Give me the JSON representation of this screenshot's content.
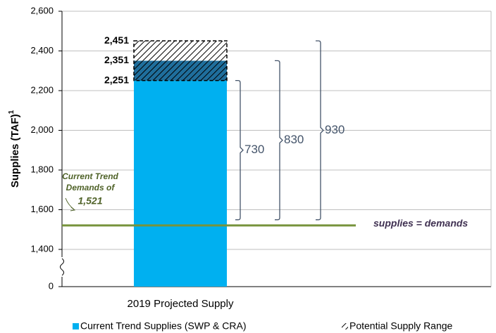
{
  "chart_data": {
    "type": "bar",
    "y_label": "Supplies (TAF)",
    "y_label_sup": "1",
    "categories": [
      "2019 Projected Supply"
    ],
    "series": [
      {
        "name": "Current Trend Supplies (SWP & CRA)",
        "color": "#00b0f0",
        "values": [
          2251
        ]
      },
      {
        "name": "Potential Supply Range",
        "values": [
          200
        ],
        "pattern": "hatch",
        "segments": [
          100,
          100
        ],
        "segment_colors": [
          "#1f6e9c",
          "#ffffff"
        ]
      }
    ],
    "levels": [
      {
        "value": 2451,
        "label": "2,451"
      },
      {
        "value": 2351,
        "label": "2,351"
      },
      {
        "value": 2251,
        "label": "2,251"
      }
    ],
    "demand": {
      "value": 1521,
      "label": "1,521",
      "text": [
        "Current Trend",
        "Demands of"
      ],
      "line_label": "supplies = demands",
      "color": "#77933c"
    },
    "brackets": [
      730,
      830,
      930
    ],
    "bracket_color": "#44546a",
    "ylim": [
      0,
      2600
    ],
    "axis_break": [
      0,
      1400
    ],
    "yticks": [
      0,
      {
        "value": 1400,
        "label": "1,400"
      },
      {
        "value": 1600,
        "label": "1,600"
      },
      {
        "value": 1800,
        "label": "1,800"
      },
      {
        "value": 2000,
        "label": "2,000"
      },
      {
        "value": 2200,
        "label": "2,200"
      },
      {
        "value": 2400,
        "label": "2,400"
      },
      {
        "value": 2600,
        "label": "2,600"
      }
    ],
    "grid": true
  }
}
